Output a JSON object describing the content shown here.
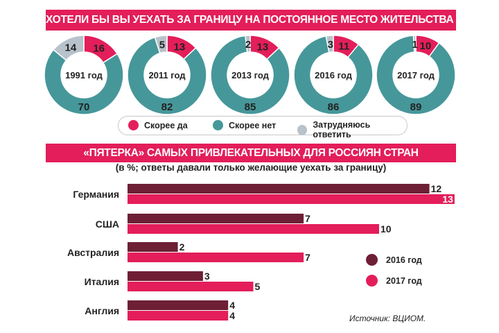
{
  "colors": {
    "accent": "#e31e5a",
    "bar_2016": "#6e1f35",
    "bar_2017": "#e31e5a",
    "yes": "#e31e5a",
    "no": "#46979a",
    "unsure": "#b8c2ca"
  },
  "chart_data": [
    {
      "type": "pie",
      "title": "ХОТЕЛИ БЫ ВЫ УЕХАТЬ ЗА ГРАНИЦУ НА ПОСТОЯННОЕ МЕСТО ЖИТЕЛЬСТВА (%)?",
      "series_names": [
        "Скорее да",
        "Скорее нет",
        "Затрудняюсь ответить"
      ],
      "donuts": [
        {
          "label": "1991 год",
          "yes": 16,
          "no": 70,
          "unsure": 14
        },
        {
          "label": "2011 год",
          "yes": 13,
          "no": 82,
          "unsure": 5
        },
        {
          "label": "2013 год",
          "yes": 13,
          "no": 85,
          "unsure": 2
        },
        {
          "label": "2016 год",
          "yes": 11,
          "no": 86,
          "unsure": 3
        },
        {
          "label": "2017 год",
          "yes": 10,
          "no": 89,
          "unsure": 1
        }
      ],
      "legend": [
        "Скорее да",
        "Скорее нет",
        "Затрудняюсь ответить"
      ]
    },
    {
      "type": "bar",
      "orientation": "horizontal",
      "title": "«ПЯТЕРКА» САМЫХ ПРИВЛЕКАТЕЛЬНЫХ ДЛЯ РОССИЯН СТРАН",
      "subtitle": "(в %; ответы давали только желающие уехать за границу)",
      "categories": [
        "Германия",
        "США",
        "Австралия",
        "Италия",
        "Англия"
      ],
      "series": [
        {
          "name": "2016 год",
          "values": [
            12,
            7,
            2,
            3,
            4
          ]
        },
        {
          "name": "2017 год",
          "values": [
            13,
            10,
            7,
            5,
            4
          ]
        }
      ],
      "xlim": [
        0,
        13
      ],
      "legend_position": "right"
    }
  ],
  "source": "Источник: ВЦИОМ."
}
